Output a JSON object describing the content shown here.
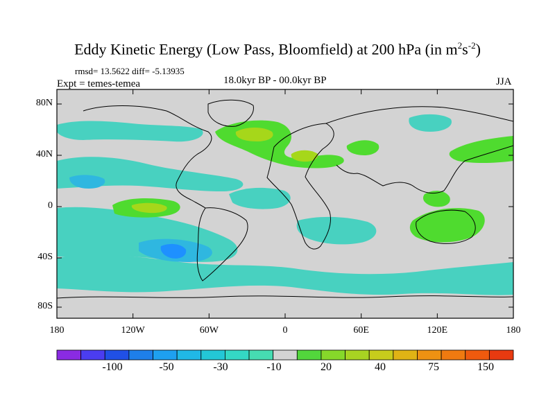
{
  "title": {
    "main": "Eddy Kinetic Energy (Low Pass, Bloomfield) at 200 hPa (in m",
    "sup1": "2",
    "mid": "s",
    "sup2": "-2",
    "end": ")"
  },
  "stats": {
    "rmsd_diff": "rmsd= 13.5622 diff= -5.13935"
  },
  "experiment": "Expt = temes-temea",
  "period": "18.0kyr BP - 00.0kyr BP",
  "season": "JJA",
  "map": {
    "lat_labels": [
      "80N",
      "40N",
      "0",
      "40S",
      "80S"
    ],
    "lon_labels": [
      "180",
      "120W",
      "60W",
      "0",
      "60E",
      "120E",
      "180"
    ],
    "fill_colors": {
      "background": "#d3d3d3",
      "cyan": "#48d1c0",
      "cyan_light": "#38ddd3",
      "blue_light": "#2fb7e0",
      "blue": "#1e90ff",
      "green": "#4fdb2f",
      "yellow_green": "#a6d71a"
    }
  },
  "colorbar": {
    "colors": [
      "#8a2be2",
      "#4b3df0",
      "#2050e6",
      "#1e7fea",
      "#1ea0f0",
      "#20b8e6",
      "#23c7d6",
      "#34d8c4",
      "#46dcb2",
      "#d3d3d3",
      "#52d63c",
      "#86d82a",
      "#a8d322",
      "#c7cc1c",
      "#e0b315",
      "#ee9212",
      "#f07a10",
      "#ef5a0e",
      "#e83a10"
    ],
    "labels": [
      "-100",
      "-50",
      "-30",
      "-10",
      "20",
      "40",
      "75",
      "150"
    ]
  }
}
